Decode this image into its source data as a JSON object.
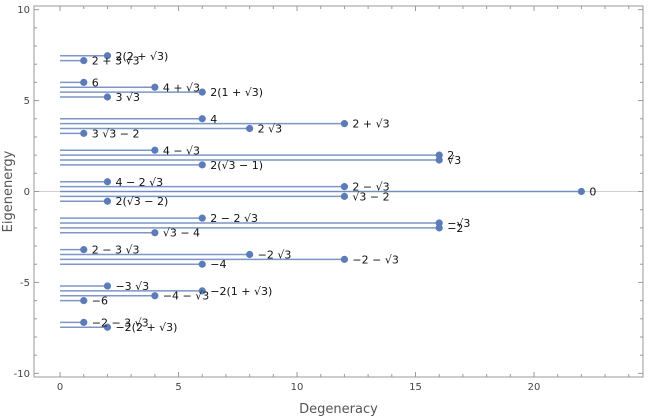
{
  "chart_data": {
    "type": "scatter",
    "title": "",
    "xlabel": "Degeneracy",
    "ylabel": "Eigenenergy",
    "xlim": [
      -1.1,
      24.6
    ],
    "ylim": [
      -10.2,
      10.2
    ],
    "xticks": [
      0,
      5,
      10,
      15,
      20
    ],
    "yticks": [
      -10,
      -5,
      0,
      5,
      10
    ],
    "xtick_labels": [
      "0",
      "5",
      "10",
      "15",
      "20"
    ],
    "ytick_labels": [
      "-10",
      "-5",
      "0",
      "5",
      "10"
    ],
    "grid": false,
    "colors": {
      "marker": "#5b7cb8",
      "line": "#5b7cb8",
      "axis": "#9a9a9a"
    },
    "points": [
      {
        "x": 2,
        "y": 7.464,
        "label": "2(2 + √3)"
      },
      {
        "x": 1,
        "y": 7.196,
        "label": "2 + 3 √3"
      },
      {
        "x": 1,
        "y": 6.0,
        "label": "6"
      },
      {
        "x": 4,
        "y": 5.732,
        "label": "4 + √3"
      },
      {
        "x": 6,
        "y": 5.464,
        "label": "2(1 + √3)"
      },
      {
        "x": 2,
        "y": 5.196,
        "label": "3 √3"
      },
      {
        "x": 6,
        "y": 4.0,
        "label": "4"
      },
      {
        "x": 12,
        "y": 3.732,
        "label": "2 + √3"
      },
      {
        "x": 8,
        "y": 3.464,
        "label": "2 √3"
      },
      {
        "x": 1,
        "y": 3.196,
        "label": "3 √3 − 2"
      },
      {
        "x": 4,
        "y": 2.268,
        "label": "4 − √3"
      },
      {
        "x": 16,
        "y": 2.0,
        "label": "2"
      },
      {
        "x": 16,
        "y": 1.732,
        "label": "√3"
      },
      {
        "x": 6,
        "y": 1.464,
        "label": "2(√3 − 1)"
      },
      {
        "x": 2,
        "y": 0.536,
        "label": "4 − 2 √3"
      },
      {
        "x": 12,
        "y": 0.268,
        "label": "2 − √3"
      },
      {
        "x": 22,
        "y": 0.0,
        "label": "0"
      },
      {
        "x": 12,
        "y": -0.268,
        "label": "√3 − 2"
      },
      {
        "x": 2,
        "y": -0.536,
        "label": "2(√3 − 2)"
      },
      {
        "x": 6,
        "y": -1.464,
        "label": "2 − 2 √3"
      },
      {
        "x": 16,
        "y": -1.732,
        "label": "−√3"
      },
      {
        "x": 16,
        "y": -2.0,
        "label": "−2"
      },
      {
        "x": 4,
        "y": -2.268,
        "label": "√3 − 4"
      },
      {
        "x": 1,
        "y": -3.196,
        "label": "2 − 3 √3"
      },
      {
        "x": 8,
        "y": -3.464,
        "label": "−2 √3"
      },
      {
        "x": 12,
        "y": -3.732,
        "label": "−2 − √3"
      },
      {
        "x": 6,
        "y": -4.0,
        "label": "−4"
      },
      {
        "x": 2,
        "y": -5.196,
        "label": "−3 √3"
      },
      {
        "x": 6,
        "y": -5.464,
        "label": "−2(1 + √3)"
      },
      {
        "x": 4,
        "y": -5.732,
        "label": "−4 − √3"
      },
      {
        "x": 1,
        "y": -6.0,
        "label": "−6"
      },
      {
        "x": 1,
        "y": -7.196,
        "label": "−2 − 3 √3"
      },
      {
        "x": 2,
        "y": -7.464,
        "label": "−2(2 + √3)"
      }
    ]
  }
}
